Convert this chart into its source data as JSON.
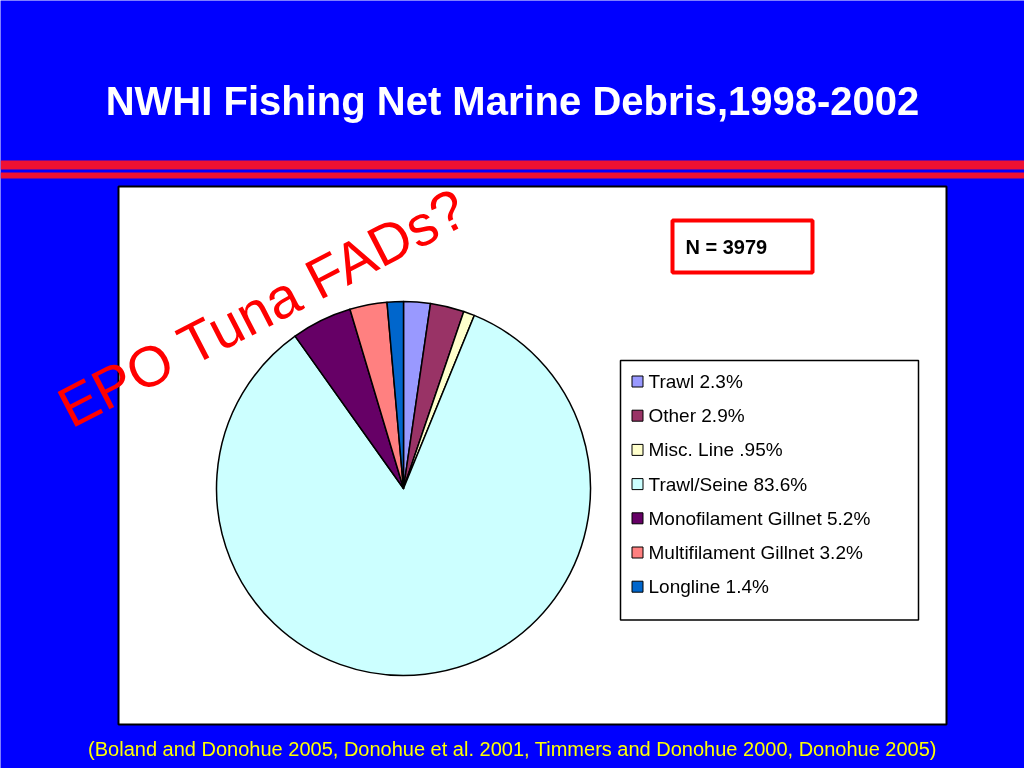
{
  "chart_data": {
    "type": "pie",
    "title": "NWHI Fishing Net Marine Debris,1998-2002",
    "categories": [
      "Trawl",
      "Other",
      "Misc. Line",
      "Trawl/Seine",
      "Monofilament Gillnet",
      "Multifilament Gillnet",
      "Longline"
    ],
    "values": [
      2.3,
      2.9,
      0.95,
      83.6,
      5.2,
      3.2,
      1.4
    ],
    "colors": [
      "#9999ff",
      "#993366",
      "#ffffcc",
      "#ccffff",
      "#660066",
      "#ff8080",
      "#0066cc"
    ],
    "value_labels": [
      "2.3%",
      "2.9%",
      ".95%",
      "83.6%",
      "5.2%",
      "3.2%",
      "1.4%"
    ],
    "legend": "right",
    "annotations": [
      "N = 3979",
      "EPO Tuna FADs?",
      "(Boland and Donohue 2005, Donohue et al. 2001, Timmers and Donohue 2000, Donohue 2005)"
    ]
  }
}
